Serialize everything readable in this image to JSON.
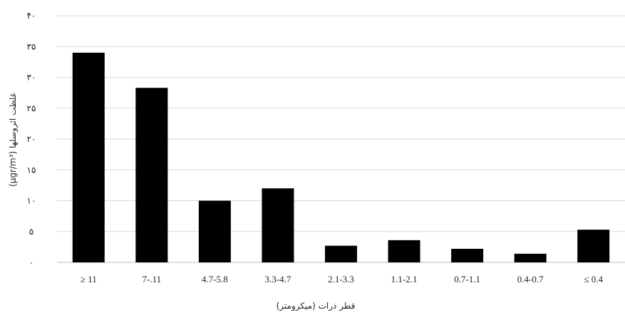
{
  "chart_data": {
    "type": "bar",
    "categories": [
      "≥ 11",
      "7-.11",
      "4.7-5.8",
      "3.3-4.7",
      "2.1-3.3",
      "1.1-2.1",
      "0.7-1.1",
      "0.4-0.7",
      "≤ 0.4"
    ],
    "values": [
      34,
      28.3,
      10,
      12,
      2.7,
      3.6,
      2.2,
      1.4,
      5.3
    ],
    "ylim": [
      0,
      40
    ],
    "yticks": [
      0,
      5,
      10,
      15,
      20,
      25,
      30,
      35,
      40
    ],
    "ytick_labels": [
      "۰",
      "۵",
      "۱۰",
      "۱۵",
      "۲۰",
      "۲۵",
      "۳۰",
      "۳۵",
      "۴۰"
    ],
    "xlabel": "قطر ذرات (میکرومتر)",
    "ylabel": "غلظت ائروسلها (µgr/m³)",
    "grid": true,
    "legend": "none",
    "bar_color": "#000000",
    "grid_color": "#d9d9d9"
  }
}
